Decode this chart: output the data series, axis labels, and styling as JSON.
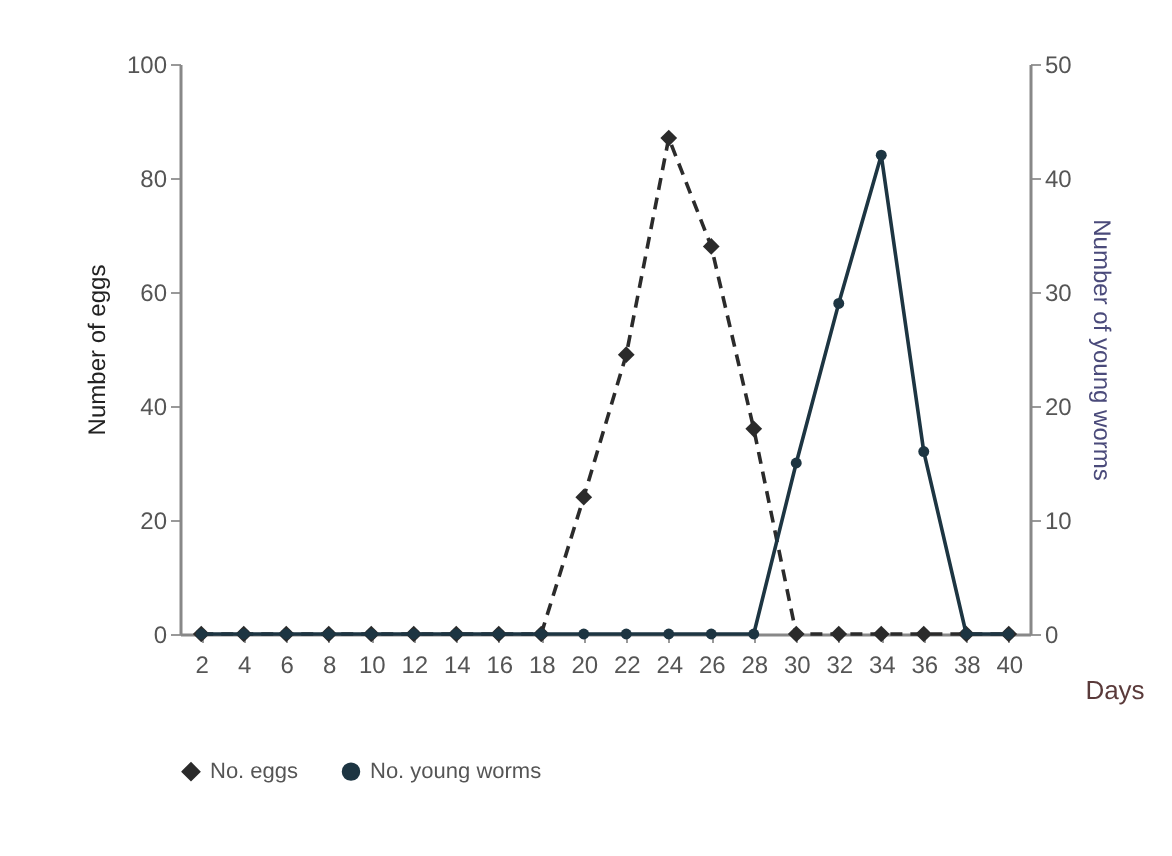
{
  "chart_data": {
    "type": "line",
    "xlabel": "Days",
    "ylabel": "Number of eggs",
    "y2label": "Number of young worms",
    "x": [
      2,
      4,
      6,
      8,
      10,
      12,
      14,
      16,
      18,
      20,
      22,
      24,
      26,
      28,
      30,
      32,
      34,
      36,
      38,
      40
    ],
    "xlim": [
      1,
      41
    ],
    "xticks": [
      2,
      4,
      6,
      8,
      10,
      12,
      14,
      16,
      18,
      20,
      22,
      24,
      26,
      28,
      30,
      32,
      34,
      36,
      38,
      40
    ],
    "ylim": [
      0,
      100
    ],
    "yticks": [
      0,
      20,
      40,
      60,
      80,
      100
    ],
    "y2lim": [
      0,
      50
    ],
    "y2ticks": [
      0,
      10,
      20,
      30,
      40,
      50
    ],
    "grid": false,
    "legend": "bottom",
    "series": [
      {
        "name": "No. eggs",
        "color": "#2b2b2b",
        "line_style": "dashed",
        "marker": "diamond",
        "values": [
          0,
          0,
          0,
          0,
          0,
          0,
          0,
          0,
          0,
          24,
          49,
          87,
          68,
          36,
          0,
          0,
          0,
          0,
          0,
          0
        ]
      },
      {
        "name": "No. young worms",
        "color": "#1d3542",
        "line_style": "solid",
        "marker": "circle",
        "axis": "y2",
        "values": [
          0,
          0,
          0,
          0,
          0,
          0,
          0,
          0,
          0,
          0,
          0,
          0,
          0,
          0,
          15,
          29,
          42,
          16,
          0,
          0
        ]
      }
    ]
  }
}
